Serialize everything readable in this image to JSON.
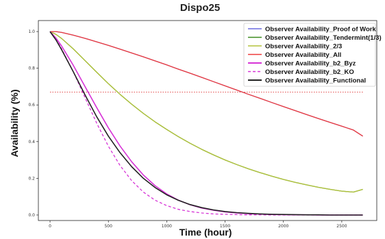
{
  "chart_data": {
    "type": "line",
    "title": "Dispo25",
    "xlabel": "Time (hour)",
    "ylabel": "Availability (%)",
    "xlim": [
      -100,
      2800
    ],
    "ylim": [
      -0.03,
      1.06
    ],
    "xticks": [
      0,
      500,
      1000,
      1500,
      2000,
      2500
    ],
    "xtick_labels": [
      "0",
      "500",
      "1000",
      "1500",
      "2000",
      "2500"
    ],
    "yticks": [
      0.0,
      0.2,
      0.4,
      0.6,
      0.8,
      1.0
    ],
    "ytick_labels": [
      "0.0",
      "0.2",
      "0.4",
      "0.6",
      "0.8",
      "1.0"
    ],
    "grid": false,
    "legend_position": "top-right",
    "reference_line": {
      "y": 0.67,
      "color": "#e03030",
      "style": "dotted"
    },
    "x": [
      0,
      50,
      100,
      200,
      300,
      400,
      500,
      600,
      700,
      800,
      900,
      1000,
      1100,
      1200,
      1300,
      1400,
      1500,
      1600,
      1700,
      1800,
      1900,
      2000,
      2100,
      2200,
      2300,
      2400,
      2500,
      2600,
      2680
    ],
    "series": [
      {
        "name": "Observer Availability_Proof of Work",
        "color": "#6a6ae0",
        "dash": "solid",
        "width": 1.3,
        "values": [
          1.0,
          1.0,
          0.995,
          0.98,
          0.963,
          0.944,
          0.925,
          0.904,
          0.883,
          0.862,
          0.84,
          0.818,
          0.795,
          0.773,
          0.75,
          0.727,
          0.704,
          0.681,
          0.658,
          0.636,
          0.613,
          0.591,
          0.569,
          0.547,
          0.526,
          0.505,
          0.484,
          0.463,
          0.43
        ]
      },
      {
        "name": "Observer Availability_Tendermint(1/3)",
        "color": "#3a8a1e",
        "dash": "solid",
        "width": 1.3,
        "values": [
          1.0,
          0.985,
          0.962,
          0.905,
          0.842,
          0.778,
          0.716,
          0.658,
          0.604,
          0.554,
          0.508,
          0.466,
          0.427,
          0.391,
          0.358,
          0.328,
          0.3,
          0.275,
          0.252,
          0.231,
          0.212,
          0.194,
          0.178,
          0.164,
          0.151,
          0.14,
          0.13,
          0.125,
          0.14
        ]
      },
      {
        "name": "Observer Availability_2/3",
        "color": "#b3c23a",
        "dash": "solid",
        "width": 1.3,
        "values": [
          1.0,
          0.985,
          0.962,
          0.905,
          0.842,
          0.778,
          0.716,
          0.658,
          0.604,
          0.554,
          0.508,
          0.466,
          0.427,
          0.391,
          0.358,
          0.328,
          0.3,
          0.275,
          0.252,
          0.231,
          0.212,
          0.194,
          0.178,
          0.164,
          0.151,
          0.14,
          0.13,
          0.125,
          0.14
        ]
      },
      {
        "name": "Observer Availability_All",
        "color": "#ee3a3a",
        "dash": "solid",
        "width": 1.3,
        "values": [
          1.0,
          1.0,
          0.995,
          0.98,
          0.963,
          0.944,
          0.925,
          0.904,
          0.883,
          0.862,
          0.84,
          0.818,
          0.795,
          0.773,
          0.75,
          0.727,
          0.704,
          0.681,
          0.658,
          0.636,
          0.613,
          0.591,
          0.569,
          0.547,
          0.526,
          0.505,
          0.484,
          0.463,
          0.43
        ]
      },
      {
        "name": "Observer Availability_b2_Byz",
        "color": "#d633d6",
        "dash": "solid",
        "width": 1.6,
        "values": [
          1.0,
          0.965,
          0.92,
          0.815,
          0.7,
          0.585,
          0.475,
          0.376,
          0.29,
          0.218,
          0.16,
          0.115,
          0.081,
          0.056,
          0.038,
          0.026,
          0.017,
          0.011,
          0.007,
          0.005,
          0.003,
          0.002,
          0.001,
          0.001,
          0.0,
          0.0,
          0.0,
          0.0,
          0.0
        ]
      },
      {
        "name": "Observer Availability_b2_KO",
        "color": "#d633d6",
        "dash": "4,3",
        "width": 1.3,
        "values": [
          1.0,
          0.96,
          0.905,
          0.78,
          0.64,
          0.5,
          0.375,
          0.27,
          0.187,
          0.125,
          0.081,
          0.051,
          0.031,
          0.019,
          0.011,
          0.006,
          0.004,
          0.002,
          0.001,
          0.001,
          0.0,
          0.0,
          0.0,
          0.0,
          0.0,
          0.0,
          0.0,
          0.0,
          0.0
        ]
      },
      {
        "name": "Observer Availability_Functional",
        "color": "#222222",
        "dash": "solid",
        "width": 1.6,
        "values": [
          1.0,
          0.955,
          0.9,
          0.78,
          0.655,
          0.535,
          0.43,
          0.34,
          0.263,
          0.2,
          0.15,
          0.11,
          0.08,
          0.057,
          0.04,
          0.028,
          0.019,
          0.013,
          0.009,
          0.006,
          0.004,
          0.003,
          0.002,
          0.001,
          0.001,
          0.0,
          0.0,
          0.0,
          0.0
        ]
      }
    ]
  }
}
